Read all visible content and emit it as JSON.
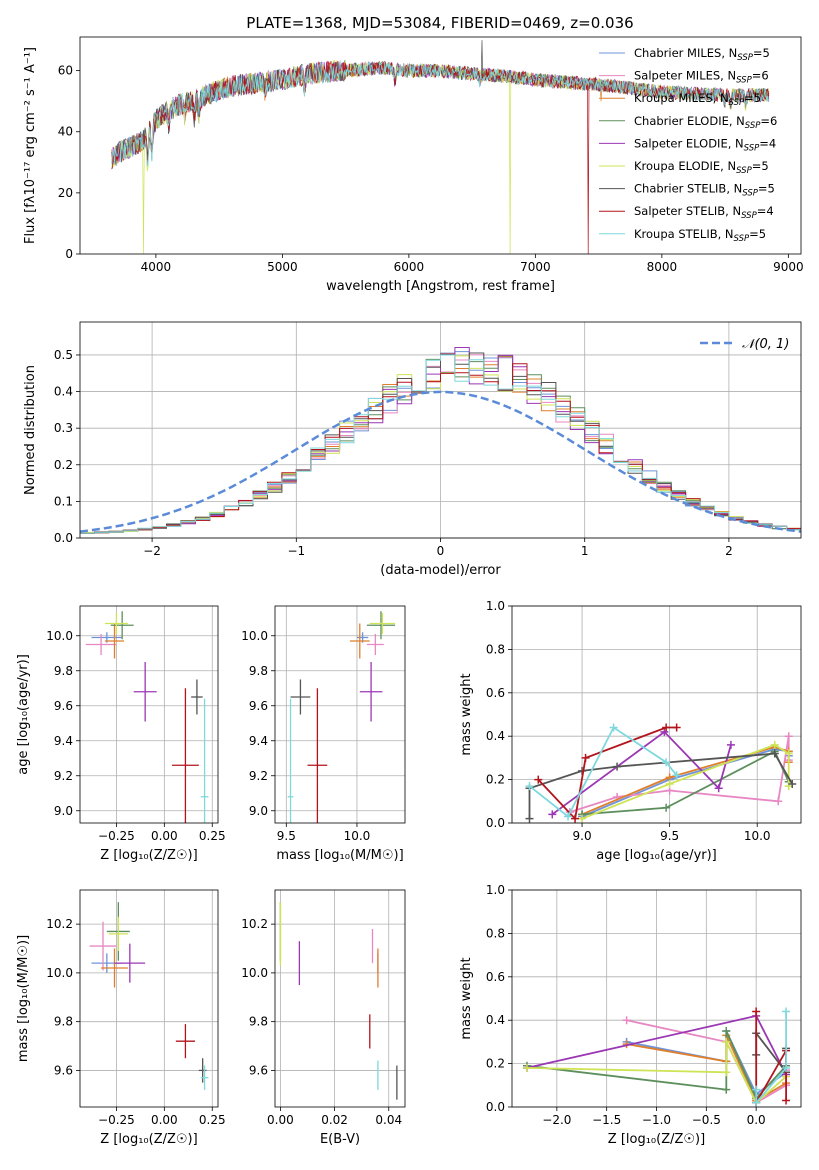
{
  "figure_title": "PLATE=1368, MJD=53084, FIBERID=0469, z=0.036",
  "palette": {
    "Chabrier MILES": "#6f93d8",
    "Salpeter MILES": "#e787c3",
    "Kroupa MILES": "#df7f2c",
    "Chabrier ELODIE": "#5d8f5d",
    "Salpeter ELODIE": "#9b37b5",
    "Kroupa ELODIE": "#cfe356",
    "Chabrier STELIB": "#555555",
    "Salpeter STELIB": "#b3141c",
    "Kroupa STELIB": "#7fd8dd"
  },
  "chart_data": [
    {
      "id": "spectrum",
      "type": "line",
      "xlabel": "wavelength [Angstrom, rest frame]",
      "ylabel": "Flux [fλ10⁻¹⁷ erg cm⁻² s⁻¹ A⁻¹]",
      "xlim": [
        3400,
        9100
      ],
      "ylim": [
        0,
        71
      ],
      "xticks": [
        4000,
        5000,
        6000,
        7000,
        8000,
        9000
      ],
      "yticks": [
        0,
        20,
        40,
        60
      ],
      "legend_position": "top-right",
      "legend": [
        "Chabrier MILES, N_SSP=5",
        "Salpeter MILES, N_SSP=6",
        "Kroupa MILES, N_SSP=5",
        "Chabrier ELODIE, N_SSP=6",
        "Salpeter ELODIE, N_SSP=4",
        "Kroupa ELODIE, N_SSP=5",
        "Chabrier STELIB, N_SSP=5",
        "Salpeter STELIB, N_SSP=4",
        "Kroupa STELIB, N_SSP=5"
      ],
      "continuum": [
        [
          3650,
          31
        ],
        [
          3700,
          33
        ],
        [
          3800,
          35
        ],
        [
          3900,
          37
        ],
        [
          4000,
          44
        ],
        [
          4100,
          47
        ],
        [
          4200,
          49
        ],
        [
          4400,
          52
        ],
        [
          4600,
          55
        ],
        [
          4800,
          56
        ],
        [
          5000,
          57
        ],
        [
          5200,
          59
        ],
        [
          5500,
          60
        ],
        [
          5800,
          61
        ],
        [
          6000,
          60
        ],
        [
          6200,
          60
        ],
        [
          6500,
          59
        ],
        [
          6800,
          58
        ],
        [
          7000,
          57
        ],
        [
          7300,
          56
        ],
        [
          7600,
          55
        ],
        [
          8000,
          53
        ],
        [
          8500,
          52
        ],
        [
          8850,
          52
        ]
      ],
      "absorption_lines": [
        [
          3934,
          9
        ],
        [
          3969,
          8
        ],
        [
          4102,
          5
        ],
        [
          4227,
          4
        ],
        [
          4304,
          6
        ],
        [
          4340,
          5
        ],
        [
          4861,
          3
        ],
        [
          5175,
          4
        ],
        [
          5890,
          4
        ],
        [
          6563,
          2
        ],
        [
          8498,
          2
        ],
        [
          8542,
          3
        ],
        [
          8662,
          3
        ]
      ],
      "spikes": [
        [
          3900,
          "Kroupa ELODIE",
          0
        ],
        [
          6800,
          "Kroupa ELODIE",
          0
        ],
        [
          7420,
          "Salpeter STELIB",
          0
        ],
        [
          7520,
          "Kroupa MILES",
          50
        ],
        [
          6580,
          "Chabrier STELIB",
          70
        ]
      ]
    },
    {
      "id": "residuals",
      "type": "histogram",
      "xlabel": "(data-model)/error",
      "ylabel": "Normed distribution",
      "xlim": [
        -2.5,
        2.5
      ],
      "ylim": [
        0,
        0.59
      ],
      "xticks": [
        -2,
        -1,
        0,
        1,
        2
      ],
      "yticks": [
        0.0,
        0.1,
        0.2,
        0.3,
        0.4,
        0.5
      ],
      "bin_width": 0.1,
      "legend": [
        "𝒩(0, 1)"
      ],
      "legend_position": "top-right",
      "reference_curve": {
        "type": "gaussian",
        "mean": 0,
        "sigma": 1,
        "style": "dashed"
      },
      "shape_amplitude": 0.46,
      "shape_mean": 0.2,
      "shape_sigma": 0.85,
      "shape_floor": 0.01
    },
    {
      "id": "age_vs_Z",
      "type": "errorbar",
      "xlabel": "Z [log₁₀(Z/Z☉)]",
      "ylabel": "age  [log₁₀(age/yr)]",
      "xlim": [
        -0.44,
        0.28
      ],
      "ylim": [
        8.93,
        10.17
      ],
      "xticks": [
        -0.25,
        0.0,
        0.25
      ],
      "yticks": [
        9.0,
        9.2,
        9.4,
        9.6,
        9.8,
        10.0
      ],
      "points": [
        {
          "model": "Chabrier MILES",
          "x": -0.3,
          "y": 9.99,
          "xerr": 0.08,
          "yerr": 0.03
        },
        {
          "model": "Salpeter MILES",
          "x": -0.33,
          "y": 9.95,
          "xerr": 0.08,
          "yerr": 0.06
        },
        {
          "model": "Kroupa MILES",
          "x": -0.26,
          "y": 9.97,
          "xerr": 0.05,
          "yerr": 0.1
        },
        {
          "model": "Chabrier ELODIE",
          "x": -0.22,
          "y": 10.06,
          "xerr": 0.06,
          "yerr": 0.08
        },
        {
          "model": "Salpeter ELODIE",
          "x": -0.1,
          "y": 9.68,
          "xerr": 0.06,
          "yerr": 0.17
        },
        {
          "model": "Kroupa ELODIE",
          "x": -0.25,
          "y": 10.07,
          "xerr": 0.06,
          "yerr": 0.06
        },
        {
          "model": "Chabrier STELIB",
          "x": 0.17,
          "y": 9.65,
          "xerr": 0.03,
          "yerr": 0.1
        },
        {
          "model": "Salpeter STELIB",
          "x": 0.11,
          "y": 9.26,
          "xerr": 0.07,
          "yerr": 0.44
        },
        {
          "model": "Kroupa STELIB",
          "x": 0.21,
          "y": 9.08,
          "xerr": 0.02,
          "yerr": 0.56
        }
      ]
    },
    {
      "id": "age_vs_mass",
      "type": "errorbar",
      "xlabel": "mass [log₁₀(M/M☉)]",
      "ylabel": "",
      "xlim": [
        9.42,
        10.34
      ],
      "ylim": [
        8.93,
        10.17
      ],
      "xticks": [
        9.5,
        10.0
      ],
      "yticks": [
        9.0,
        9.2,
        9.4,
        9.6,
        9.8,
        10.0
      ],
      "points": [
        {
          "model": "Chabrier MILES",
          "x": 10.04,
          "y": 9.99,
          "xerr": 0.04,
          "yerr": 0.03
        },
        {
          "model": "Salpeter MILES",
          "x": 10.13,
          "y": 9.95,
          "xerr": 0.06,
          "yerr": 0.06
        },
        {
          "model": "Kroupa MILES",
          "x": 10.02,
          "y": 9.97,
          "xerr": 0.07,
          "yerr": 0.1
        },
        {
          "model": "Chabrier ELODIE",
          "x": 10.17,
          "y": 10.06,
          "xerr": 0.1,
          "yerr": 0.08
        },
        {
          "model": "Salpeter ELODIE",
          "x": 10.1,
          "y": 9.68,
          "xerr": 0.08,
          "yerr": 0.17
        },
        {
          "model": "Kroupa ELODIE",
          "x": 10.18,
          "y": 10.07,
          "xerr": 0.09,
          "yerr": 0.06
        },
        {
          "model": "Chabrier STELIB",
          "x": 9.6,
          "y": 9.65,
          "xerr": 0.07,
          "yerr": 0.1
        },
        {
          "model": "Salpeter STELIB",
          "x": 9.72,
          "y": 9.26,
          "xerr": 0.07,
          "yerr": 0.44
        },
        {
          "model": "Kroupa STELIB",
          "x": 9.53,
          "y": 9.08,
          "xerr": 0.02,
          "yerr": 0.56
        }
      ]
    },
    {
      "id": "weight_vs_age",
      "type": "line",
      "xlabel": "age  [log₁₀(age/yr)]",
      "ylabel": "mass weight",
      "xlim": [
        8.6,
        10.25
      ],
      "ylim": [
        0.0,
        1.0
      ],
      "xticks": [
        9.0,
        9.5,
        10.0
      ],
      "yticks": [
        0.0,
        0.2,
        0.4,
        0.6,
        0.8,
        1.0
      ],
      "series": [
        {
          "model": "Chabrier MILES",
          "x": [
            9.0,
            9.5,
            10.1,
            10.18,
            10.18
          ],
          "y": [
            0.03,
            0.2,
            0.34,
            0.33,
            0.31
          ]
        },
        {
          "model": "Salpeter MILES",
          "x": [
            8.93,
            9.2,
            9.5,
            10.12,
            10.18,
            10.18
          ],
          "y": [
            0.05,
            0.12,
            0.15,
            0.1,
            0.4,
            0.29
          ]
        },
        {
          "model": "Kroupa MILES",
          "x": [
            9.0,
            9.5,
            10.1,
            10.18,
            10.18
          ],
          "y": [
            0.04,
            0.21,
            0.35,
            0.33,
            0.28
          ]
        },
        {
          "model": "Chabrier ELODIE",
          "x": [
            9.0,
            9.48,
            10.1,
            10.18
          ],
          "y": [
            0.04,
            0.07,
            0.33,
            0.19
          ]
        },
        {
          "model": "Salpeter ELODIE",
          "x": [
            8.83,
            9.47,
            9.78,
            9.85
          ],
          "y": [
            0.04,
            0.42,
            0.16,
            0.36
          ]
        },
        {
          "model": "Kroupa ELODIE",
          "x": [
            9.0,
            9.5,
            10.1,
            10.18,
            10.18
          ],
          "y": [
            0.02,
            0.18,
            0.36,
            0.32,
            0.17
          ]
        },
        {
          "model": "Chabrier STELIB",
          "x": [
            8.7,
            8.7,
            9.0,
            9.2,
            10.1,
            10.2
          ],
          "y": [
            0.02,
            0.16,
            0.24,
            0.26,
            0.32,
            0.18
          ]
        },
        {
          "model": "Salpeter STELIB",
          "x": [
            8.75,
            8.96,
            9.02,
            9.48,
            9.54
          ],
          "y": [
            0.2,
            0.02,
            0.3,
            0.44,
            0.44
          ]
        },
        {
          "model": "Kroupa STELIB",
          "x": [
            8.7,
            8.92,
            9.18,
            9.48,
            9.54
          ],
          "y": [
            0.17,
            0.03,
            0.44,
            0.28,
            0.22
          ]
        }
      ]
    },
    {
      "id": "mass_vs_Z",
      "type": "errorbar",
      "xlabel": "Z [log₁₀(Z/Z☉)]",
      "ylabel": "mass [log₁₀(M/M☉)]",
      "xlim": [
        -0.44,
        0.28
      ],
      "ylim": [
        9.45,
        10.34
      ],
      "xticks": [
        -0.25,
        0.0,
        0.25
      ],
      "yticks": [
        9.6,
        9.8,
        10.0,
        10.2
      ],
      "points": [
        {
          "model": "Chabrier MILES",
          "x": -0.3,
          "y": 10.04,
          "xerr": 0.08,
          "yerr": 0.04
        },
        {
          "model": "Salpeter MILES",
          "x": -0.32,
          "y": 10.11,
          "xerr": 0.07,
          "yerr": 0.1
        },
        {
          "model": "Kroupa MILES",
          "x": -0.26,
          "y": 10.02,
          "xerr": 0.07,
          "yerr": 0.08
        },
        {
          "model": "Chabrier ELODIE",
          "x": -0.24,
          "y": 10.17,
          "xerr": 0.06,
          "yerr": 0.12
        },
        {
          "model": "Salpeter ELODIE",
          "x": -0.18,
          "y": 10.04,
          "xerr": 0.08,
          "yerr": 0.08
        },
        {
          "model": "Kroupa ELODIE",
          "x": -0.24,
          "y": 10.16,
          "xerr": 0.05,
          "yerr": 0.07
        },
        {
          "model": "Chabrier STELIB",
          "x": 0.2,
          "y": 9.6,
          "xerr": 0.02,
          "yerr": 0.05
        },
        {
          "model": "Salpeter STELIB",
          "x": 0.11,
          "y": 9.72,
          "xerr": 0.05,
          "yerr": 0.07
        },
        {
          "model": "Kroupa STELIB",
          "x": 0.21,
          "y": 9.57,
          "xerr": 0.02,
          "yerr": 0.05
        }
      ]
    },
    {
      "id": "mass_vs_EBV",
      "type": "errorbar",
      "xlabel": "E(B-V)",
      "ylabel": "",
      "xlim": [
        -0.002,
        0.046
      ],
      "ylim": [
        9.45,
        10.34
      ],
      "xticks": [
        0.0,
        0.02,
        0.04
      ],
      "yticks": [
        9.6,
        9.8,
        10.0,
        10.2
      ],
      "points": [
        {
          "model": "Chabrier MILES",
          "x": 0.036,
          "y": 10.04,
          "xerr": 0,
          "yerr": 0.04
        },
        {
          "model": "Salpeter MILES",
          "x": 0.034,
          "y": 10.11,
          "xerr": 0,
          "yerr": 0.07
        },
        {
          "model": "Kroupa MILES",
          "x": 0.036,
          "y": 10.02,
          "xerr": 0,
          "yerr": 0.08
        },
        {
          "model": "Chabrier ELODIE",
          "x": 0.0,
          "y": 10.17,
          "xerr": 0,
          "yerr": 0.12
        },
        {
          "model": "Salpeter ELODIE",
          "x": 0.007,
          "y": 10.04,
          "xerr": 0,
          "yerr": 0.09
        },
        {
          "model": "Kroupa ELODIE",
          "x": 0.0,
          "y": 10.16,
          "xerr": 0,
          "yerr": 0.13
        },
        {
          "model": "Chabrier STELIB",
          "x": 0.043,
          "y": 9.55,
          "xerr": 0,
          "yerr": 0.07
        },
        {
          "model": "Salpeter STELIB",
          "x": 0.033,
          "y": 9.76,
          "xerr": 0,
          "yerr": 0.07
        },
        {
          "model": "Kroupa STELIB",
          "x": 0.036,
          "y": 9.58,
          "xerr": 0,
          "yerr": 0.06
        }
      ]
    },
    {
      "id": "weight_vs_Z",
      "type": "line",
      "xlabel": "Z [log₁₀(Z/Z☉)]",
      "ylabel": "mass weight",
      "xlim": [
        -2.45,
        0.45
      ],
      "ylim": [
        0.0,
        1.0
      ],
      "xticks": [
        -2.0,
        -1.5,
        -1.0,
        -0.5,
        0.0
      ],
      "yticks": [
        0.0,
        0.2,
        0.4,
        0.6,
        0.8,
        1.0
      ],
      "series": [
        {
          "model": "Chabrier MILES",
          "x": [
            -1.3,
            -0.3,
            -0.3,
            0.0,
            0.3
          ],
          "y": [
            0.3,
            0.21,
            0.35,
            0.06,
            0.16
          ]
        },
        {
          "model": "Salpeter MILES",
          "x": [
            -1.3,
            -0.3,
            0.0,
            0.3,
            0.3
          ],
          "y": [
            0.4,
            0.3,
            0.02,
            0.1,
            0.17
          ]
        },
        {
          "model": "Kroupa MILES",
          "x": [
            -1.3,
            -0.3,
            -0.3,
            0.0,
            0.3
          ],
          "y": [
            0.29,
            0.21,
            0.33,
            0.03,
            0.11
          ]
        },
        {
          "model": "Chabrier ELODIE",
          "x": [
            -2.3,
            -0.3,
            -0.3,
            0.0,
            0.3
          ],
          "y": [
            0.19,
            0.08,
            0.35,
            0.04,
            0.19
          ]
        },
        {
          "model": "Salpeter ELODIE",
          "x": [
            -2.3,
            0.0,
            0.3
          ],
          "y": [
            0.18,
            0.42,
            0.15
          ]
        },
        {
          "model": "Kroupa ELODIE",
          "x": [
            -2.3,
            -0.3,
            -0.3,
            0.0,
            0.3
          ],
          "y": [
            0.18,
            0.16,
            0.3,
            0.02,
            0.14
          ]
        },
        {
          "model": "Chabrier STELIB",
          "x": [
            0.0,
            0.0,
            0.3,
            0.3
          ],
          "y": [
            0.24,
            0.34,
            0.16,
            0.27
          ]
        },
        {
          "model": "Salpeter STELIB",
          "x": [
            0.0,
            0.0,
            0.3,
            0.3
          ],
          "y": [
            0.44,
            0.02,
            0.26,
            0.03
          ]
        },
        {
          "model": "Kroupa STELIB",
          "x": [
            0.0,
            0.0,
            0.3,
            0.3
          ],
          "y": [
            0.08,
            0.02,
            0.18,
            0.44
          ]
        }
      ]
    }
  ]
}
